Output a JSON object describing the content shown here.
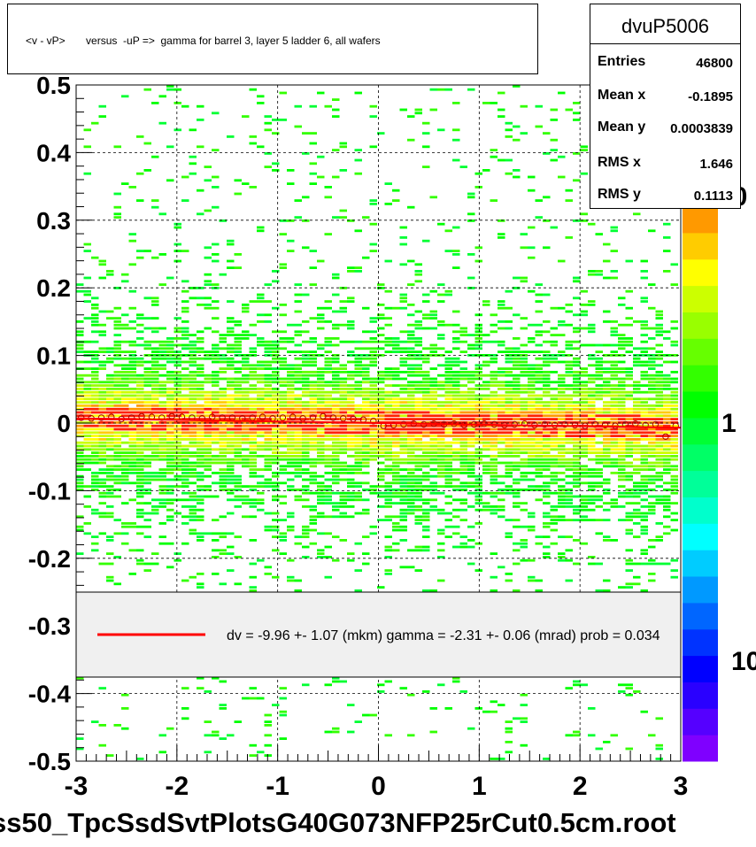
{
  "title": "<v - vP>       versus  -uP =>  gamma for barrel 3, layer 5 ladder 6, all wafers",
  "stats": {
    "name": "dvuP5006",
    "rows": [
      {
        "label": "Entries",
        "value": "46800"
      },
      {
        "label": "Mean x",
        "value": "-0.1895"
      },
      {
        "label": "Mean y",
        "value": "0.0003839"
      },
      {
        "label": "RMS x",
        "value": "1.646"
      },
      {
        "label": "RMS y",
        "value": "0.1113"
      }
    ]
  },
  "legend": {
    "text": "dv =   -9.96 +-  1.07 (mkm) gamma =   -2.31 +-  0.06 (mrad) prob = 0.034",
    "line_color": "#ff0000"
  },
  "footer": "ss50_TpcSsdSvtPlotsG40G073NFP25rCut0.5cm.root",
  "palette": [
    "#7f00ff",
    "#5500ff",
    "#2a00ff",
    "#0000ff",
    "#0033ff",
    "#0066ff",
    "#0099ff",
    "#00ccff",
    "#00ffff",
    "#00ffcc",
    "#00ff99",
    "#00ff66",
    "#00ff33",
    "#00ff00",
    "#33ff00",
    "#66ff00",
    "#99ff00",
    "#ccff00",
    "#ffff00",
    "#ffcc00",
    "#ff9900"
  ],
  "colorbar_labels": [
    "10",
    "1",
    "10"
  ],
  "chart_data": {
    "type": "heatmap",
    "xlim": [
      -3,
      3
    ],
    "ylim": [
      -0.5,
      0.5
    ],
    "x_ticks": [
      -3,
      -2,
      -1,
      0,
      1,
      2,
      3
    ],
    "y_ticks": [
      0.5,
      0.4,
      0.3,
      0.2,
      0.1,
      0,
      -0.1,
      -0.2,
      -0.3,
      -0.4,
      -0.5
    ],
    "x_tick_labels": [
      "-3",
      "-2",
      "-1",
      "0",
      "1",
      "2",
      "3"
    ],
    "y_tick_labels": [
      "0.5",
      "0.4",
      "0.3",
      "0.2",
      "0.1",
      "0",
      "-0.1",
      "-0.2",
      "-0.3",
      "-0.4",
      "-0.5"
    ],
    "grid": true,
    "profile_points": {
      "x": [
        -2.95,
        -2.85,
        -2.75,
        -2.65,
        -2.55,
        -2.45,
        -2.35,
        -2.25,
        -2.15,
        -2.05,
        -1.95,
        -1.85,
        -1.75,
        -1.65,
        -1.55,
        -1.45,
        -1.35,
        -1.25,
        -1.15,
        -1.05,
        -0.95,
        -0.85,
        -0.75,
        -0.65,
        -0.55,
        -0.45,
        -0.35,
        -0.25,
        -0.15,
        -0.05,
        0.05,
        0.15,
        0.25,
        0.35,
        0.45,
        0.55,
        0.65,
        0.75,
        0.85,
        0.95,
        1.05,
        1.15,
        1.25,
        1.35,
        1.45,
        1.55,
        1.65,
        1.75,
        1.85,
        1.95,
        2.05,
        2.15,
        2.25,
        2.35,
        2.45,
        2.55,
        2.65,
        2.75,
        2.85,
        2.95
      ],
      "y": [
        0.008,
        0.007,
        0.008,
        0.009,
        0.006,
        0.008,
        0.01,
        0.009,
        0.008,
        0.01,
        0.009,
        0.008,
        0.007,
        0.009,
        0.008,
        0.008,
        0.007,
        0.008,
        0.009,
        0.007,
        0.008,
        0.009,
        0.007,
        0.008,
        0.01,
        0.008,
        0.007,
        0.006,
        0.005,
        0.003,
        -0.004,
        -0.003,
        -0.002,
        -0.001,
        -0.002,
        -0.001,
        -0.002,
        -0.001,
        -0.003,
        -0.002,
        -0.001,
        -0.002,
        -0.003,
        -0.002,
        -0.001,
        -0.003,
        -0.002,
        -0.003,
        -0.002,
        -0.003,
        -0.004,
        -0.002,
        -0.003,
        -0.004,
        -0.002,
        -0.001,
        -0.003,
        -0.002,
        -0.02,
        -0.004
      ]
    },
    "fit_line": {
      "x": [
        -3,
        3
      ],
      "y": [
        0.0069,
        -0.0069
      ]
    }
  }
}
